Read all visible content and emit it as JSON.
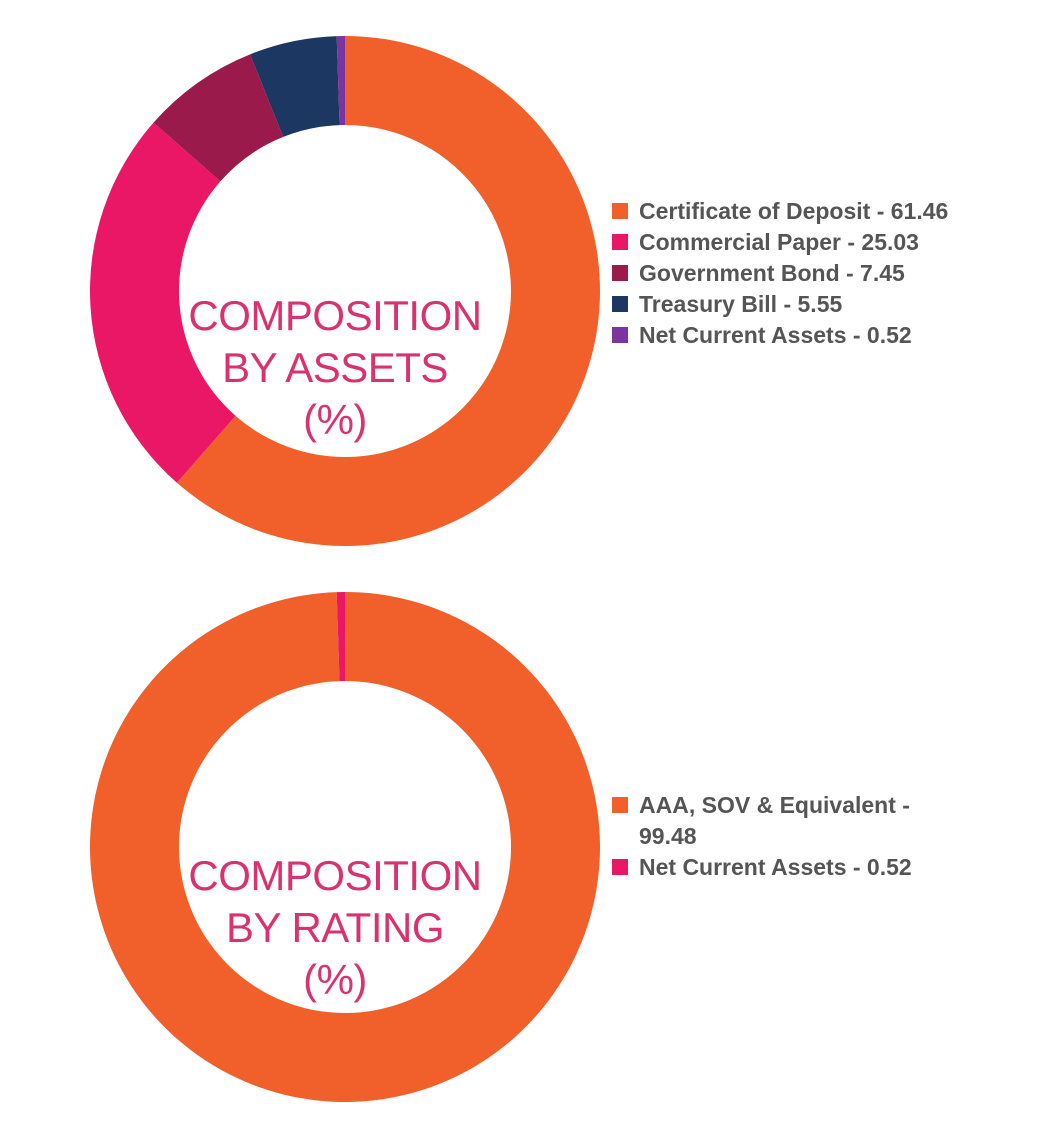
{
  "chart_data": [
    {
      "type": "pie",
      "center_label": [
        "COMPOSITION",
        "BY ASSETS",
        "(%)"
      ],
      "start_angle_deg": 0,
      "direction": "clockwise",
      "legend_position": "right",
      "slices": [
        {
          "label": "Certificate of Deposit - 61.46",
          "value": 61.46,
          "color": "#f15f2a"
        },
        {
          "label": "Commercial Paper - 25.03",
          "value": 25.03,
          "color": "#ea1766"
        },
        {
          "label": "Government Bond - 7.45",
          "value": 7.45,
          "color": "#9a1a4b"
        },
        {
          "label": "Treasury Bill - 5.55",
          "value": 5.55,
          "color": "#1b3762"
        },
        {
          "label": "Net Current Assets - 0.52",
          "value": 0.52,
          "color": "#7b34a0"
        }
      ]
    },
    {
      "type": "pie",
      "center_label": [
        "COMPOSITION",
        "BY RATING",
        "(%)"
      ],
      "start_angle_deg": 0,
      "direction": "clockwise",
      "legend_position": "right",
      "slices": [
        {
          "label": "AAA, SOV & Equivalent - 99.48",
          "value": 99.48,
          "color": "#f15f2a"
        },
        {
          "label": "Net Current Assets - 0.52",
          "value": 0.52,
          "color": "#ea1766"
        }
      ]
    }
  ]
}
